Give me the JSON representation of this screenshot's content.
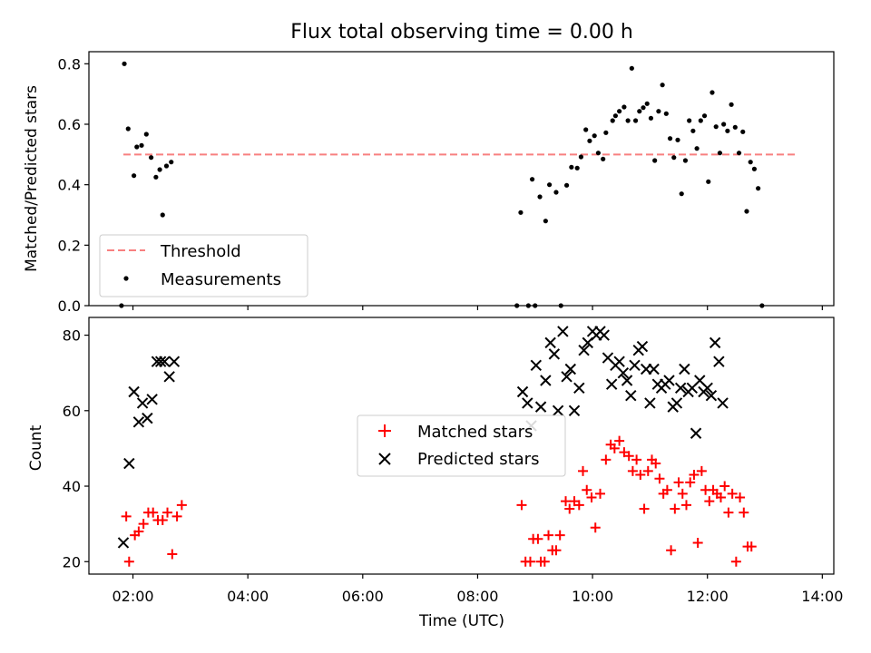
{
  "chart_data": [
    {
      "type": "scatter",
      "title": "Flux total observing time = 0.00 h",
      "ylabel": "Matched/Predicted stars",
      "xlabel": "",
      "xlim": [
        "01:14",
        "14:12"
      ],
      "ylim": [
        0,
        0.84
      ],
      "yticks": [
        0.0,
        0.2,
        0.4,
        0.6,
        0.8
      ],
      "ytick_labels": [
        "0.0",
        "0.2",
        "0.4",
        "0.6",
        "0.8"
      ],
      "xticks": [
        "02:00",
        "04:00",
        "06:00",
        "08:00",
        "10:00",
        "12:00",
        "14:00"
      ],
      "grid": false,
      "legend_position": "lower-left",
      "threshold": {
        "name": "Threshold",
        "value": 0.5,
        "x_range": [
          "01:50",
          "13:35"
        ],
        "color": "#f88080",
        "style": "dashed"
      },
      "series": [
        {
          "name": "Measurements",
          "color": "#000000",
          "marker": "dot",
          "points": [
            [
              "01:48",
              0.0
            ],
            [
              "01:51",
              0.8
            ],
            [
              "01:55",
              0.585
            ],
            [
              "02:01",
              0.43
            ],
            [
              "02:04",
              0.525
            ],
            [
              "02:09",
              0.53
            ],
            [
              "02:14",
              0.567
            ],
            [
              "02:19",
              0.49
            ],
            [
              "02:24",
              0.425
            ],
            [
              "02:28",
              0.45
            ],
            [
              "02:31",
              0.3
            ],
            [
              "02:35",
              0.462
            ],
            [
              "02:40",
              0.475
            ],
            [
              "08:41",
              0.0
            ],
            [
              "08:45",
              0.308
            ],
            [
              "08:53",
              0.0
            ],
            [
              "08:57",
              0.418
            ],
            [
              "09:00",
              0.0
            ],
            [
              "09:05",
              0.36
            ],
            [
              "09:11",
              0.28
            ],
            [
              "09:15",
              0.4
            ],
            [
              "09:22",
              0.375
            ],
            [
              "09:27",
              0.0
            ],
            [
              "09:33",
              0.398
            ],
            [
              "09:38",
              0.458
            ],
            [
              "09:44",
              0.455
            ],
            [
              "09:48",
              0.492
            ],
            [
              "09:53",
              0.582
            ],
            [
              "09:57",
              0.545
            ],
            [
              "10:02",
              0.562
            ],
            [
              "10:06",
              0.505
            ],
            [
              "10:11",
              0.485
            ],
            [
              "10:14",
              0.572
            ],
            [
              "10:21",
              0.612
            ],
            [
              "10:24",
              0.628
            ],
            [
              "10:28",
              0.643
            ],
            [
              "10:33",
              0.657
            ],
            [
              "10:37",
              0.612
            ],
            [
              "10:41",
              0.785
            ],
            [
              "10:45",
              0.612
            ],
            [
              "10:49",
              0.643
            ],
            [
              "10:53",
              0.655
            ],
            [
              "10:57",
              0.668
            ],
            [
              "11:01",
              0.62
            ],
            [
              "11:05",
              0.48
            ],
            [
              "11:09",
              0.643
            ],
            [
              "11:13",
              0.73
            ],
            [
              "11:17",
              0.635
            ],
            [
              "11:21",
              0.553
            ],
            [
              "11:25",
              0.49
            ],
            [
              "11:29",
              0.548
            ],
            [
              "11:33",
              0.37
            ],
            [
              "11:37",
              0.48
            ],
            [
              "11:41",
              0.612
            ],
            [
              "11:45",
              0.578
            ],
            [
              "11:49",
              0.52
            ],
            [
              "11:53",
              0.612
            ],
            [
              "11:57",
              0.628
            ],
            [
              "12:01",
              0.41
            ],
            [
              "12:05",
              0.705
            ],
            [
              "12:09",
              0.592
            ],
            [
              "12:13",
              0.505
            ],
            [
              "12:17",
              0.6
            ],
            [
              "12:21",
              0.578
            ],
            [
              "12:25",
              0.665
            ],
            [
              "12:29",
              0.59
            ],
            [
              "12:33",
              0.505
            ],
            [
              "12:37",
              0.575
            ],
            [
              "12:41",
              0.312
            ],
            [
              "12:45",
              0.475
            ],
            [
              "12:49",
              0.452
            ],
            [
              "12:53",
              0.388
            ],
            [
              "12:57",
              0.0
            ]
          ]
        }
      ]
    },
    {
      "type": "scatter",
      "title": "",
      "xlabel": "Time (UTC)",
      "ylabel": "Count",
      "xlim": [
        "01:14",
        "14:12"
      ],
      "ylim": [
        16.7,
        84.7
      ],
      "yticks": [
        20,
        40,
        60,
        80
      ],
      "xticks": [
        "02:00",
        "04:00",
        "06:00",
        "08:00",
        "10:00",
        "12:00",
        "14:00"
      ],
      "grid": false,
      "legend_position": "center",
      "series": [
        {
          "name": "Matched stars",
          "color": "#ff0000",
          "marker": "plus",
          "points": [
            [
              "01:53",
              32
            ],
            [
              "01:56",
              20
            ],
            [
              "02:02",
              27
            ],
            [
              "02:06",
              28
            ],
            [
              "02:11",
              30
            ],
            [
              "02:16",
              33
            ],
            [
              "02:21",
              33
            ],
            [
              "02:26",
              31
            ],
            [
              "02:31",
              31
            ],
            [
              "02:36",
              33
            ],
            [
              "02:41",
              22
            ],
            [
              "02:46",
              32
            ],
            [
              "02:51",
              35
            ],
            [
              "08:46",
              35
            ],
            [
              "08:50",
              20
            ],
            [
              "08:55",
              20
            ],
            [
              "08:58",
              26
            ],
            [
              "09:03",
              26
            ],
            [
              "09:06",
              20
            ],
            [
              "09:10",
              20
            ],
            [
              "09:14",
              27
            ],
            [
              "09:18",
              23
            ],
            [
              "09:22",
              23
            ],
            [
              "09:26",
              27
            ],
            [
              "09:32",
              36
            ],
            [
              "09:36",
              34
            ],
            [
              "09:41",
              36
            ],
            [
              "09:46",
              35
            ],
            [
              "09:50",
              44
            ],
            [
              "09:54",
              39
            ],
            [
              "09:59",
              37
            ],
            [
              "10:03",
              29
            ],
            [
              "10:08",
              38
            ],
            [
              "10:14",
              47
            ],
            [
              "10:19",
              51
            ],
            [
              "10:23",
              50
            ],
            [
              "10:28",
              52
            ],
            [
              "10:33",
              49
            ],
            [
              "10:38",
              48
            ],
            [
              "10:42",
              44
            ],
            [
              "10:46",
              47
            ],
            [
              "10:50",
              43
            ],
            [
              "10:54",
              34
            ],
            [
              "10:58",
              44
            ],
            [
              "11:02",
              47
            ],
            [
              "11:06",
              46
            ],
            [
              "11:10",
              42
            ],
            [
              "11:14",
              38
            ],
            [
              "11:18",
              39
            ],
            [
              "11:22",
              23
            ],
            [
              "11:26",
              34
            ],
            [
              "11:30",
              41
            ],
            [
              "11:34",
              38
            ],
            [
              "11:38",
              35
            ],
            [
              "11:42",
              41
            ],
            [
              "11:46",
              43
            ],
            [
              "11:50",
              25
            ],
            [
              "11:54",
              44
            ],
            [
              "11:58",
              39
            ],
            [
              "12:02",
              36
            ],
            [
              "12:06",
              39
            ],
            [
              "12:10",
              38
            ],
            [
              "12:14",
              37
            ],
            [
              "12:18",
              40
            ],
            [
              "12:22",
              33
            ],
            [
              "12:26",
              38
            ],
            [
              "12:30",
              20
            ],
            [
              "12:34",
              37
            ],
            [
              "12:38",
              33
            ],
            [
              "12:42",
              24
            ],
            [
              "12:46",
              24
            ]
          ]
        },
        {
          "name": "Predicted stars",
          "color": "#000000",
          "marker": "x",
          "points": [
            [
              "01:50",
              25
            ],
            [
              "01:56",
              46
            ],
            [
              "02:01",
              65
            ],
            [
              "02:06",
              57
            ],
            [
              "02:10",
              62
            ],
            [
              "02:15",
              58
            ],
            [
              "02:20",
              63
            ],
            [
              "02:25",
              73
            ],
            [
              "02:29",
              73
            ],
            [
              "02:33",
              73
            ],
            [
              "02:38",
              69
            ],
            [
              "02:43",
              73
            ],
            [
              "08:47",
              65
            ],
            [
              "08:52",
              62
            ],
            [
              "08:56",
              56
            ],
            [
              "09:01",
              72
            ],
            [
              "09:06",
              61
            ],
            [
              "09:11",
              68
            ],
            [
              "09:16",
              78
            ],
            [
              "09:20",
              75
            ],
            [
              "09:24",
              60
            ],
            [
              "09:29",
              81
            ],
            [
              "09:33",
              69
            ],
            [
              "09:37",
              71
            ],
            [
              "09:41",
              60
            ],
            [
              "09:46",
              66
            ],
            [
              "09:51",
              76
            ],
            [
              "09:55",
              78
            ],
            [
              "10:00",
              81
            ],
            [
              "10:04",
              80
            ],
            [
              "10:08",
              81
            ],
            [
              "10:12",
              80
            ],
            [
              "10:16",
              74
            ],
            [
              "10:20",
              67
            ],
            [
              "10:24",
              72
            ],
            [
              "10:28",
              73
            ],
            [
              "10:32",
              70
            ],
            [
              "10:36",
              68
            ],
            [
              "10:40",
              64
            ],
            [
              "10:44",
              72
            ],
            [
              "10:48",
              76
            ],
            [
              "10:52",
              77
            ],
            [
              "10:56",
              71
            ],
            [
              "11:00",
              62
            ],
            [
              "11:04",
              71
            ],
            [
              "11:08",
              67
            ],
            [
              "11:12",
              66
            ],
            [
              "11:16",
              67
            ],
            [
              "11:20",
              68
            ],
            [
              "11:24",
              61
            ],
            [
              "11:28",
              62
            ],
            [
              "11:32",
              66
            ],
            [
              "11:36",
              71
            ],
            [
              "11:40",
              65
            ],
            [
              "11:44",
              66
            ],
            [
              "11:48",
              54
            ],
            [
              "11:52",
              68
            ],
            [
              "11:56",
              65
            ],
            [
              "12:00",
              66
            ],
            [
              "12:04",
              64
            ],
            [
              "12:08",
              78
            ],
            [
              "12:12",
              73
            ],
            [
              "12:16",
              62
            ]
          ]
        }
      ]
    }
  ]
}
